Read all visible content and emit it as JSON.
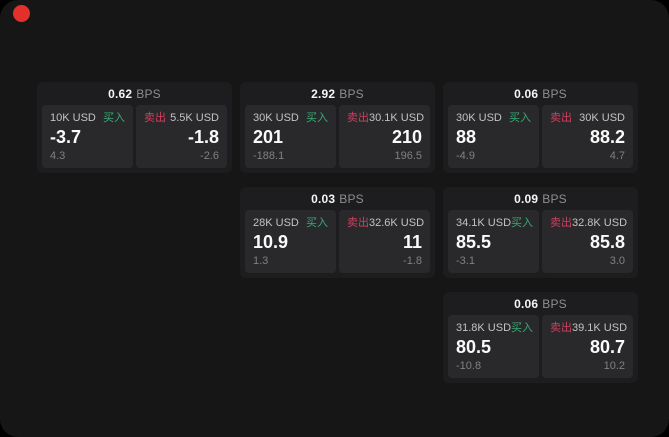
{
  "labels": {
    "bps": "BPS",
    "buy": "买入",
    "sell": "卖出"
  },
  "colors": {
    "page_bg": "#161617",
    "card_bg": "#1d1d1f",
    "pane_bg": "#29292b",
    "buy_green": "#38ab74",
    "sell_red": "#cf3f60",
    "record_red": "#e3302a"
  },
  "cards": [
    {
      "bps": "0.62",
      "buy_amount": "10K USD",
      "buy_value": "-3.7",
      "buy_sub": "4.3",
      "sell_amount": "5.5K USD",
      "sell_value": "-1.8",
      "sell_sub": "-2.6"
    },
    {
      "bps": "2.92",
      "buy_amount": "30K USD",
      "buy_value": "201",
      "buy_sub": "-188.1",
      "sell_amount": "30.1K USD",
      "sell_value": "210",
      "sell_sub": "196.5"
    },
    {
      "bps": "0.06",
      "buy_amount": "30K USD",
      "buy_value": "88",
      "buy_sub": "-4.9",
      "sell_amount": "30K USD",
      "sell_value": "88.2",
      "sell_sub": "4.7"
    },
    {
      "bps": "0.03",
      "buy_amount": "28K USD",
      "buy_value": "10.9",
      "buy_sub": "1.3",
      "sell_amount": "32.6K USD",
      "sell_value": "11",
      "sell_sub": "-1.8"
    },
    {
      "bps": "0.09",
      "buy_amount": "34.1K USD",
      "buy_value": "85.5",
      "buy_sub": "-3.1",
      "sell_amount": "32.8K USD",
      "sell_value": "85.8",
      "sell_sub": "3.0"
    },
    {
      "bps": "0.06",
      "buy_amount": "31.8K USD",
      "buy_value": "80.5",
      "buy_sub": "-10.8",
      "sell_amount": "39.1K USD",
      "sell_value": "80.7",
      "sell_sub": "10.2"
    }
  ]
}
